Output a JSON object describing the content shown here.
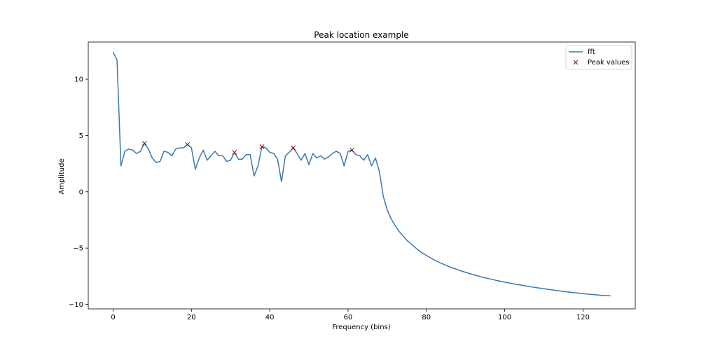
{
  "chart_data": {
    "type": "line",
    "title": "Peak location example",
    "xlabel": "Frequency (bins)",
    "ylabel": "Amplitude",
    "xlim": [
      -6.35,
      133.35
    ],
    "ylim": [
      -10.4,
      13.3
    ],
    "xticks": [
      0,
      20,
      40,
      60,
      80,
      100,
      120
    ],
    "yticks": [
      -10,
      -5,
      0,
      5,
      10
    ],
    "grid": false,
    "legend_position": "top-right",
    "colors": {
      "line": "#3a77af",
      "marker": "#8b0000"
    },
    "series": [
      {
        "name": "fft",
        "kind": "line",
        "x_start": 0,
        "x_step": 1,
        "values": [
          12.4,
          11.7,
          2.3,
          3.6,
          3.8,
          3.7,
          3.4,
          3.6,
          4.3,
          3.8,
          3.0,
          2.6,
          2.7,
          3.6,
          3.5,
          3.2,
          3.8,
          3.9,
          3.9,
          4.2,
          3.9,
          2.0,
          3.0,
          3.7,
          2.8,
          3.2,
          3.6,
          3.2,
          3.2,
          2.7,
          2.8,
          3.5,
          2.9,
          2.9,
          3.3,
          3.3,
          1.4,
          2.3,
          4.0,
          3.9,
          3.5,
          3.4,
          2.9,
          0.9,
          3.2,
          3.5,
          3.9,
          3.4,
          2.8,
          3.4,
          2.4,
          3.4,
          3.0,
          3.2,
          2.9,
          3.1,
          3.4,
          3.6,
          3.4,
          2.3,
          3.6,
          3.7,
          3.3,
          3.2,
          2.8,
          3.3,
          2.3,
          3.0,
          1.8,
          -0.4,
          -1.6,
          -2.4,
          -3.0,
          -3.5,
          -3.9,
          -4.3,
          -4.6,
          -4.9,
          -5.2,
          -5.45,
          -5.65,
          -5.85,
          -6.05,
          -6.22,
          -6.38,
          -6.53,
          -6.67,
          -6.8,
          -6.92,
          -7.04,
          -7.15,
          -7.26,
          -7.36,
          -7.46,
          -7.55,
          -7.64,
          -7.72,
          -7.8,
          -7.88,
          -7.95,
          -8.02,
          -8.09,
          -8.16,
          -8.22,
          -8.28,
          -8.34,
          -8.4,
          -8.46,
          -8.51,
          -8.56,
          -8.61,
          -8.66,
          -8.71,
          -8.76,
          -8.8,
          -8.85,
          -8.89,
          -8.93,
          -8.97,
          -9.01,
          -9.05,
          -9.08,
          -9.11,
          -9.14,
          -9.17,
          -9.2,
          -9.22,
          -9.24
        ]
      },
      {
        "name": "Peak values",
        "kind": "scatter",
        "marker": "x",
        "points": [
          {
            "x": 8,
            "y": 4.3
          },
          {
            "x": 19,
            "y": 4.2
          },
          {
            "x": 31,
            "y": 3.5
          },
          {
            "x": 38,
            "y": 4.0
          },
          {
            "x": 46,
            "y": 3.9
          },
          {
            "x": 61,
            "y": 3.7
          }
        ]
      }
    ]
  }
}
